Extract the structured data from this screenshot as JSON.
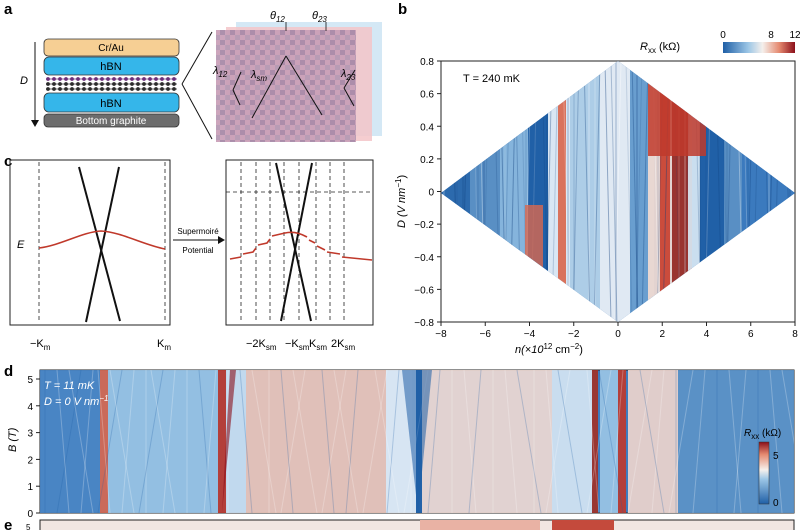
{
  "figure": {
    "panel_labels": [
      "a",
      "b",
      "c",
      "d",
      "e"
    ]
  },
  "panel_a": {
    "layers": [
      "Cr/Au",
      "hBN",
      "hBN",
      "Bottom graphite"
    ],
    "side_label": "D",
    "angles": {
      "theta12": "θ",
      "theta12_sub": "12",
      "theta23": "θ",
      "theta23_sub": "23"
    },
    "lambdas": [
      {
        "main": "λ",
        "sub": "12"
      },
      {
        "main": "λ",
        "sub": "sm"
      },
      {
        "main": "λ",
        "sub": "23"
      }
    ],
    "colors": {
      "crau": "#f6cf94",
      "hbn": "#35b6ea",
      "graphite": "#6d6d6d",
      "atoms_top": "#6b2f7a",
      "atoms_mid": "#2b2b2b"
    }
  },
  "panel_b": {
    "temperature": "T = 240 mK",
    "colorbar": {
      "label": "R",
      "label_sub": "xx",
      "label_unit": " (kΩ)",
      "ticks": [
        "0",
        "8",
        "12"
      ]
    },
    "x_axis": {
      "label": "n(×10",
      "label_sup": "12",
      "label_end": " cm",
      "label_sup2": "−2",
      "label_close": ")",
      "ticks": [
        "−8",
        "−6",
        "−4",
        "−2",
        "0",
        "2",
        "4",
        "6",
        "8"
      ]
    },
    "y_axis": {
      "label": "D (V nm",
      "label_sup": "−1",
      "label_close": ")",
      "ticks": [
        "0.8",
        "0.6",
        "0.4",
        "0.2",
        "0",
        "−0.2",
        "−0.4",
        "−0.6",
        "−0.8"
      ]
    }
  },
  "panel_c": {
    "energy_label": "E",
    "left_ticks": {
      "minus": "−K",
      "minus_sub": "m",
      "plus": "K",
      "plus_sub": "m"
    },
    "arrow_top": "Supermoiré",
    "arrow_bottom": "Potential",
    "right_ticks": [
      {
        "txt": "−2K",
        "sub": "sm"
      },
      {
        "txt": "−K",
        "sub": "sm"
      },
      {
        "txt": "K",
        "sub": "sm"
      },
      {
        "txt": "2K",
        "sub": "sm"
      }
    ]
  },
  "panel_d": {
    "temperature": "T = 11 mK",
    "displacement": "D = 0 V nm",
    "displacement_sup": "−1",
    "y_axis": {
      "label": "B (T)",
      "ticks": [
        "5",
        "4",
        "3",
        "2",
        "1",
        "0"
      ]
    },
    "colorbar": {
      "label": "R",
      "label_sub": "xx",
      "label_unit": " (kΩ)",
      "ticks": [
        "5",
        "0"
      ]
    }
  },
  "panel_e": {
    "tick": "5"
  },
  "colors": {
    "map_blue_dark": "#1f5fa6",
    "map_blue_light": "#cfe3f3",
    "map_red": "#c0392b",
    "map_white": "#f4ece6",
    "band_red": "#c0392b"
  }
}
